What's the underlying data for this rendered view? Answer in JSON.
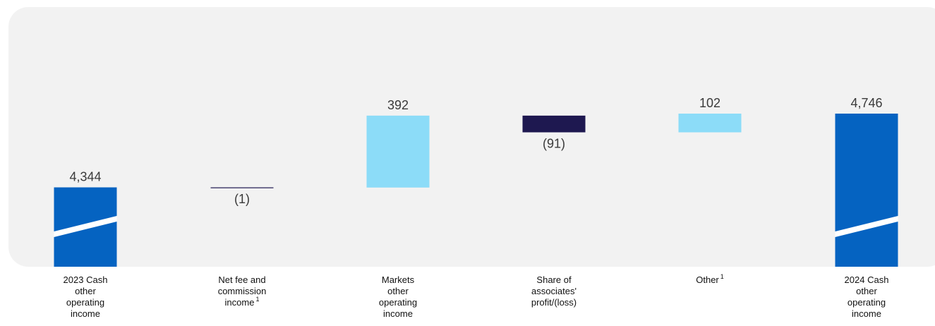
{
  "chart_data": {
    "type": "waterfall",
    "title": "",
    "xlabel": "",
    "ylabel": "",
    "ylim": [
      3900,
      4800
    ],
    "colors": {
      "total": "#0563c1",
      "increase": "#8cdcf8",
      "decrease": "#1e1850",
      "panel": "#f2f2f2",
      "break": "#ffffff"
    },
    "bars": [
      {
        "kind": "total",
        "value": 4344,
        "label": "4,344",
        "category_lines": [
          "2023 Cash",
          "other",
          "operating",
          "income"
        ],
        "footnote": ""
      },
      {
        "kind": "decrease",
        "value": -1,
        "label": "(1)",
        "category_lines": [
          "Net fee and",
          "commission",
          "income"
        ],
        "footnote": "1"
      },
      {
        "kind": "increase",
        "value": 392,
        "label": "392",
        "category_lines": [
          "Markets",
          "other",
          "operating",
          "income"
        ],
        "footnote": ""
      },
      {
        "kind": "decrease",
        "value": -91,
        "label": "(91)",
        "category_lines": [
          "Share of",
          "associates'",
          "profit/(loss)"
        ],
        "footnote": ""
      },
      {
        "kind": "increase",
        "value": 102,
        "label": "102",
        "category_lines": [
          "Other"
        ],
        "footnote": "1"
      },
      {
        "kind": "total",
        "value": 4746,
        "label": "4,746",
        "category_lines": [
          "2024 Cash",
          "other",
          "operating",
          "income"
        ],
        "footnote": ""
      }
    ]
  }
}
